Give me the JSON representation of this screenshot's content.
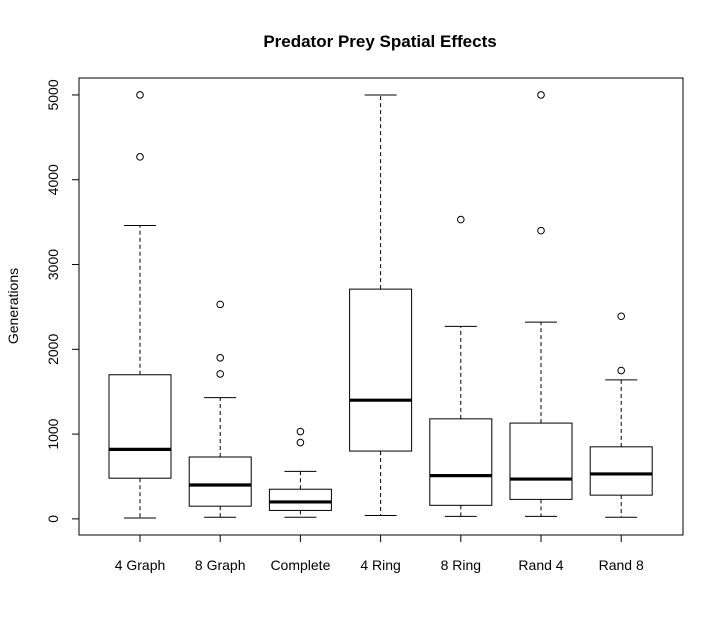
{
  "chart_data": {
    "type": "boxplot",
    "title": "Predator Prey Spatial Effects",
    "xlabel": "",
    "ylabel": "Generations",
    "ylim": [
      -190,
      5200
    ],
    "yticks": [
      0,
      1000,
      2000,
      3000,
      4000,
      5000
    ],
    "grid": false,
    "categories": [
      "4 Graph",
      "8 Graph",
      "Complete",
      "4 Ring",
      "8 Ring",
      "Rand 4",
      "Rand 8"
    ],
    "boxes": [
      {
        "label": "4 Graph",
        "min": 10,
        "q1": 480,
        "median": 820,
        "q3": 1700,
        "max": 3460,
        "outliers": [
          4270,
          5000
        ]
      },
      {
        "label": "8 Graph",
        "min": 20,
        "q1": 150,
        "median": 400,
        "q3": 730,
        "max": 1430,
        "outliers": [
          1710,
          1900,
          2530
        ]
      },
      {
        "label": "Complete",
        "min": 20,
        "q1": 100,
        "median": 200,
        "q3": 350,
        "max": 560,
        "outliers": [
          900,
          1030
        ]
      },
      {
        "label": "4 Ring",
        "min": 40,
        "q1": 800,
        "median": 1400,
        "q3": 2710,
        "max": 5000,
        "outliers": []
      },
      {
        "label": "8 Ring",
        "min": 30,
        "q1": 160,
        "median": 510,
        "q3": 1180,
        "max": 2270,
        "outliers": [
          3530
        ]
      },
      {
        "label": "Rand 4",
        "min": 30,
        "q1": 230,
        "median": 470,
        "q3": 1130,
        "max": 2320,
        "outliers": [
          3400,
          5000
        ]
      },
      {
        "label": "Rand 8",
        "min": 20,
        "q1": 280,
        "median": 530,
        "q3": 850,
        "max": 1640,
        "outliers": [
          1750,
          2390
        ]
      }
    ]
  }
}
